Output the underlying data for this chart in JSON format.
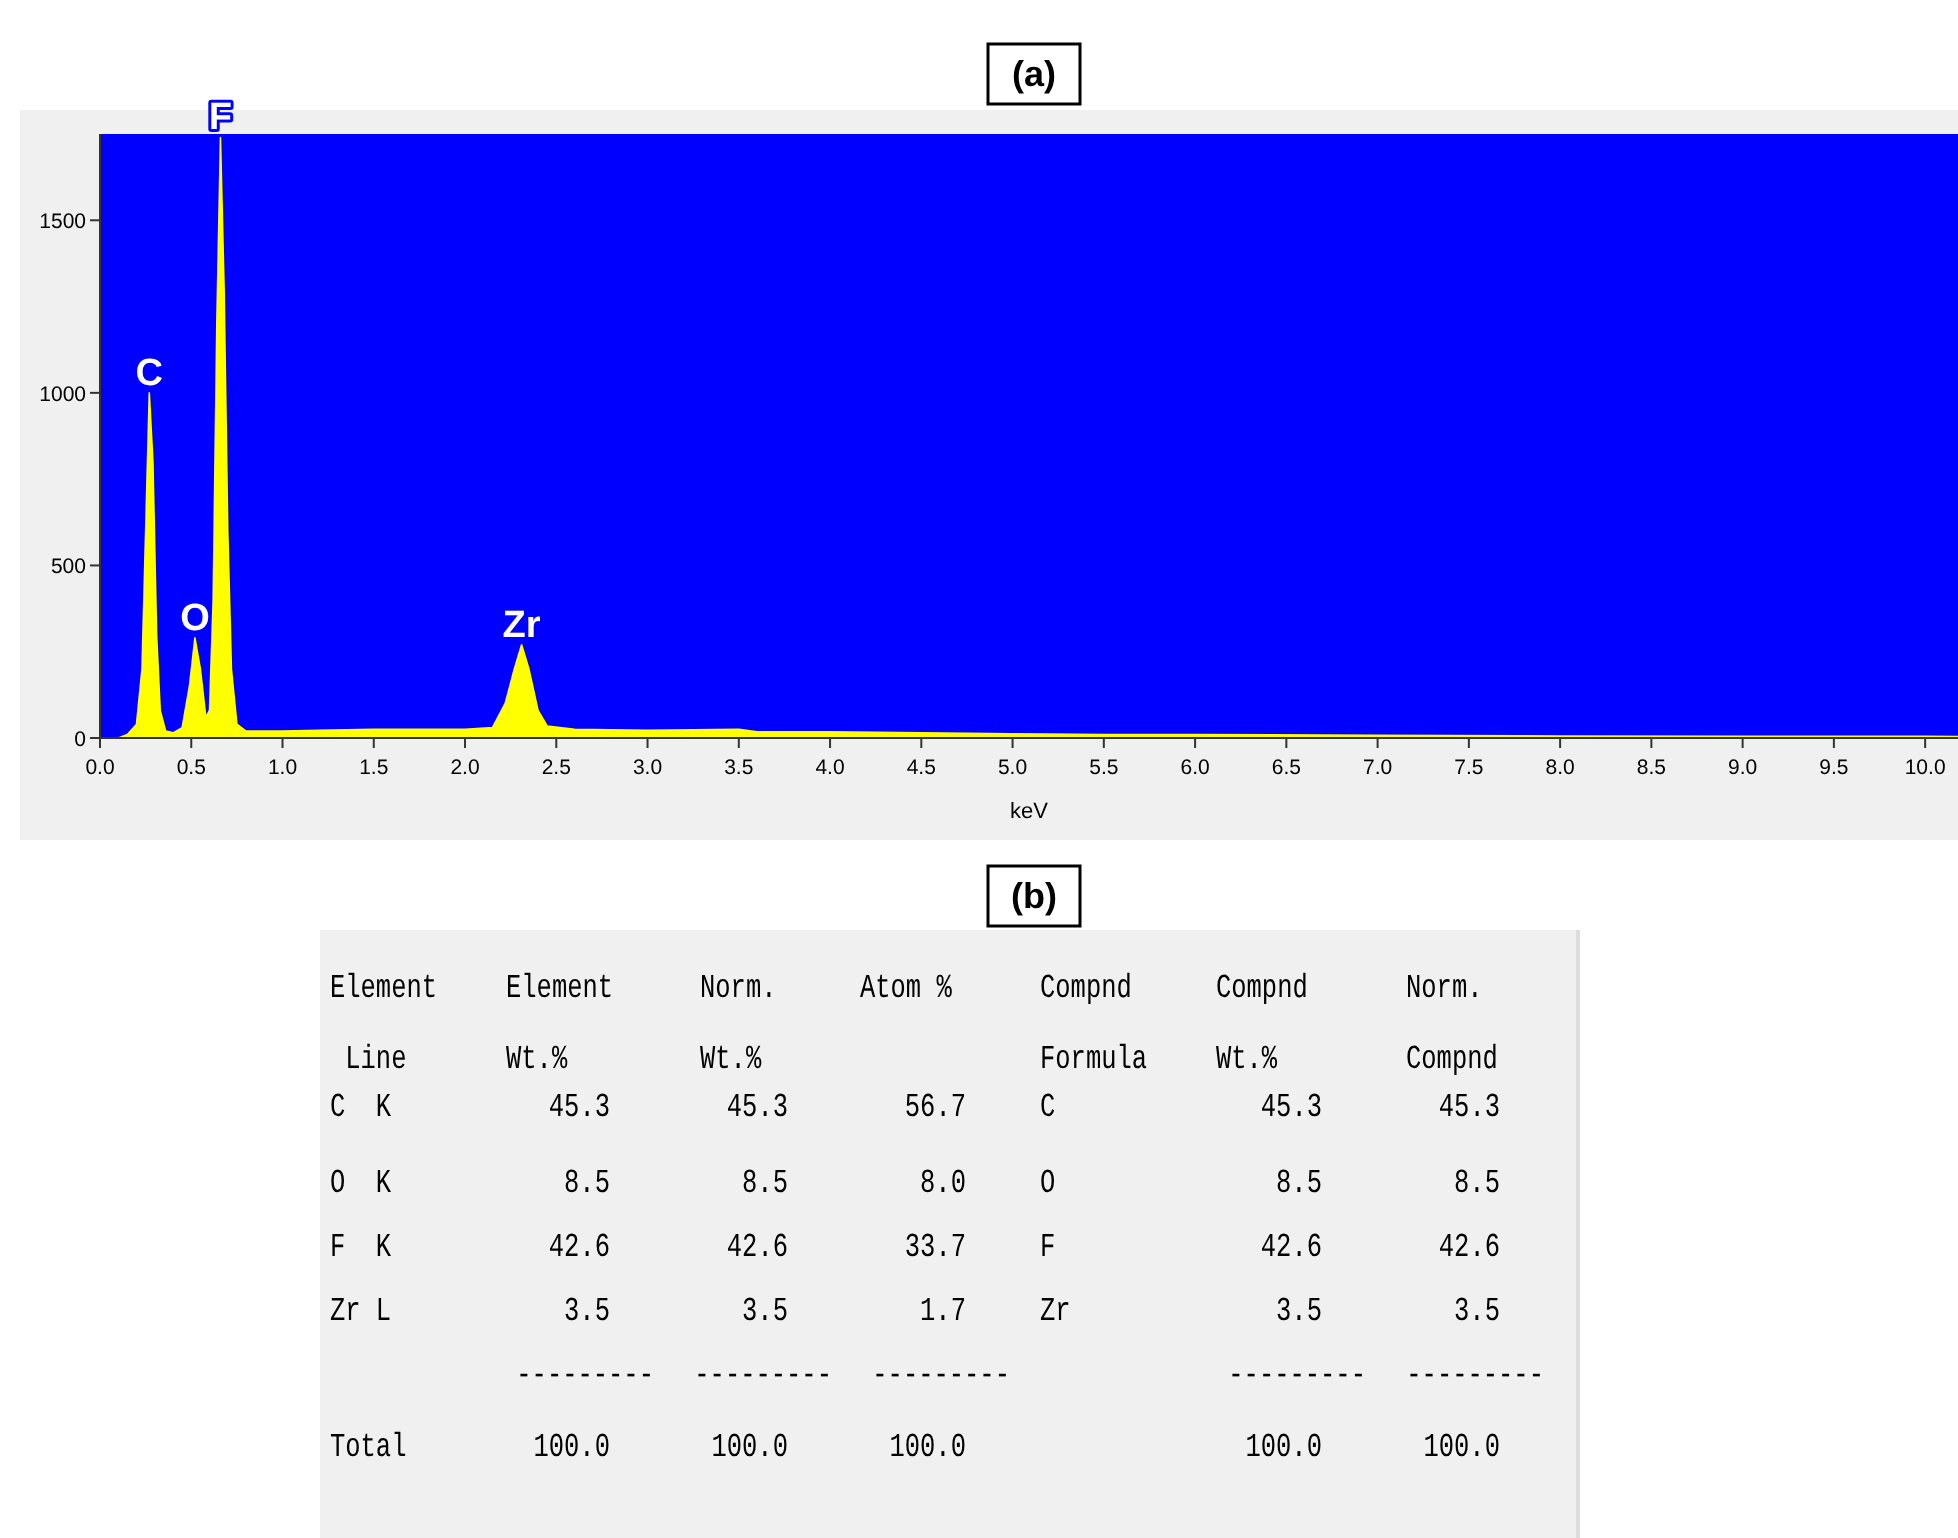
{
  "chart_data": [
    {
      "type": "area",
      "title": "(a)",
      "xlabel": "keV",
      "x": [
        0.0,
        0.1,
        0.15,
        0.2,
        0.23,
        0.25,
        0.27,
        0.29,
        0.31,
        0.33,
        0.36,
        0.4,
        0.45,
        0.49,
        0.52,
        0.55,
        0.58,
        0.6,
        0.62,
        0.64,
        0.66,
        0.68,
        0.7,
        0.72,
        0.75,
        0.8,
        1.0,
        1.2,
        1.5,
        1.8,
        2.0,
        2.15,
        2.22,
        2.27,
        2.31,
        2.35,
        2.4,
        2.45,
        2.6,
        3.0,
        3.5,
        3.6,
        4.0,
        4.5,
        5.0,
        5.5,
        6.0,
        7.0,
        8.0,
        9.0,
        10.0,
        10.18
      ],
      "series": [
        {
          "color": "#ffff00",
          "values": [
            0,
            0,
            10,
            40,
            200,
            600,
            1000,
            800,
            300,
            80,
            20,
            15,
            30,
            150,
            290,
            200,
            60,
            80,
            400,
            1200,
            1740,
            1300,
            600,
            200,
            40,
            20,
            20,
            22,
            25,
            25,
            25,
            30,
            100,
            200,
            270,
            200,
            80,
            35,
            25,
            22,
            25,
            18,
            18,
            15,
            12,
            10,
            10,
            8,
            6,
            5,
            5,
            4
          ]
        }
      ],
      "xlim": [
        0,
        10.18
      ],
      "ylim": [
        0,
        1750
      ],
      "xticks": [
        {
          "value": 0,
          "label": "0.0"
        },
        0.5,
        {
          "value": 1,
          "label": "1.0"
        },
        1.5,
        {
          "value": 2,
          "label": "2.0"
        },
        2.5,
        {
          "value": 3,
          "label": "3.0"
        },
        3.5,
        {
          "value": 4,
          "label": "4.0"
        },
        4.5,
        {
          "value": 5,
          "label": "5.0"
        },
        5.5,
        {
          "value": 6,
          "label": "6.0"
        },
        6.5,
        {
          "value": 7,
          "label": "7.0"
        },
        7.5,
        {
          "value": 8,
          "label": "8.0"
        },
        8.5,
        {
          "value": 9,
          "label": "9.0"
        },
        9.5,
        {
          "value": 10,
          "label": "10.0"
        }
      ],
      "yticks": [
        0,
        500,
        1000,
        1500
      ],
      "annotations": [
        {
          "text": "C",
          "x": 0.27,
          "y": 1000
        },
        {
          "text": "O",
          "x": 0.52,
          "y": 290
        },
        {
          "text": "F",
          "x": 0.66,
          "y": 1740
        },
        {
          "text": "Zr",
          "x": 2.31,
          "y": 270
        }
      ]
    },
    {
      "type": "other",
      "title": "(b)",
      "ylabel": "Element\n Line",
      "categories": [
        "Element\nWt.%",
        "Norm.\nWt.%",
        "Atom %",
        "Compnd\nFormula",
        "Compnd\nWt.%",
        "Norm.\nCompnd"
      ],
      "y_categories": [
        "C  K",
        "O  K",
        "F  K",
        "Zr L",
        null,
        "Total"
      ],
      "cell_labels": [
        [
          "45.3",
          "45.3",
          "56.7",
          "C",
          "45.3",
          "45.3"
        ],
        [
          "8.5",
          "8.5",
          "8.0",
          "O",
          "8.5",
          "8.5"
        ],
        [
          "42.6",
          "42.6",
          "33.7",
          "F",
          "42.6",
          "42.6"
        ],
        [
          "3.5",
          "3.5",
          "1.7",
          "Zr",
          "3.5",
          "3.5"
        ],
        [
          "---------",
          "---------",
          "---------",
          null,
          "---------",
          "---------"
        ],
        [
          "100.0",
          "100.0",
          "100.0",
          null,
          "100.0",
          "100.0"
        ]
      ]
    }
  ]
}
